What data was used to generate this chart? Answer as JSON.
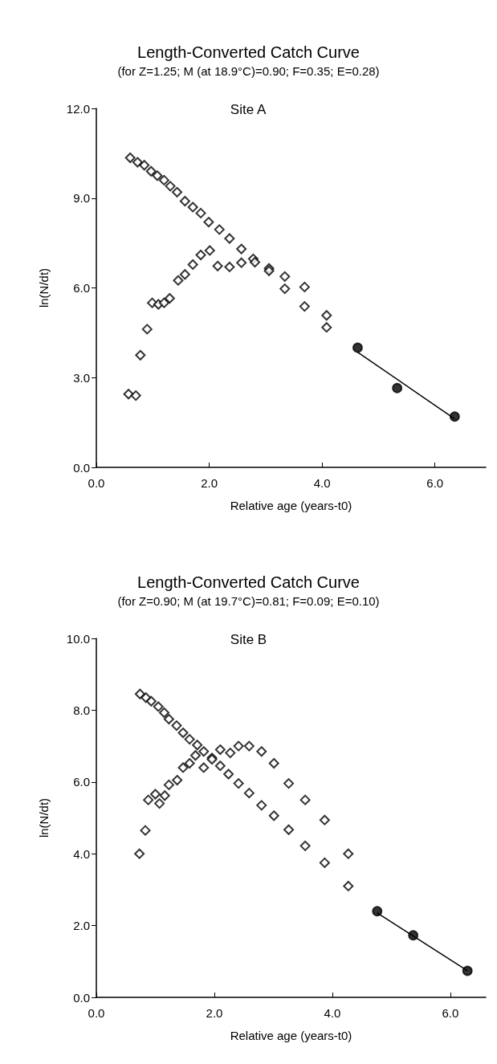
{
  "chart_data": [
    {
      "type": "scatter",
      "title": "Length-Converted Catch Curve",
      "subtitle": "(for Z=1.25; M (at 18.9°C)=0.90; F=0.35; E=0.28)",
      "annotations": [
        "Site A"
      ],
      "xlabel": "Relative age (years-t0)",
      "ylabel": "ln(N/dt)",
      "xlim": [
        0,
        6.9
      ],
      "xticks": [
        {
          "value": 0,
          "label": "0.0"
        },
        {
          "value": 2,
          "label": "2.0"
        },
        {
          "value": 4,
          "label": "4.0"
        },
        {
          "value": 6,
          "label": "6.0"
        }
      ],
      "ylim": [
        0,
        12
      ],
      "yticks": [
        {
          "value": 0,
          "label": "0.0"
        },
        {
          "value": 3,
          "label": "3.0"
        },
        {
          "value": 6,
          "label": "6.0"
        },
        {
          "value": 9,
          "label": "9.0"
        },
        {
          "value": 12,
          "label": "12.0"
        }
      ],
      "series": [
        {
          "color": "#000000",
          "marker": "diamond",
          "x": [
            0.6,
            0.73,
            0.85,
            0.97,
            1.08,
            1.2,
            1.31,
            1.43,
            1.57,
            1.71,
            1.85,
            1.99,
            2.18,
            2.36,
            2.57,
            2.78,
            3.06,
            3.34,
            3.69,
            4.08
          ],
          "values": [
            10.35,
            10.2,
            10.1,
            9.9,
            9.75,
            9.6,
            9.4,
            9.2,
            8.9,
            8.7,
            8.5,
            8.2,
            7.95,
            7.65,
            7.3,
            6.97,
            6.65,
            6.38,
            5.38,
            4.68
          ]
        },
        {
          "color": "#000000",
          "marker": "diamond",
          "x": [
            0.57,
            0.7,
            0.78,
            0.9,
            0.99,
            1.1,
            1.2,
            1.3,
            1.45,
            1.57,
            1.71,
            1.85,
            2.01,
            2.15,
            2.36,
            2.57,
            2.81,
            3.06,
            3.34,
            3.69,
            4.08
          ],
          "values": [
            2.45,
            2.4,
            3.75,
            4.62,
            5.5,
            5.45,
            5.5,
            5.65,
            6.25,
            6.45,
            6.78,
            7.1,
            7.25,
            6.73,
            6.7,
            6.84,
            6.86,
            6.57,
            5.97,
            6.03,
            5.08
          ]
        },
        {
          "color": "#000000",
          "marker": "circle",
          "x": [
            4.63,
            5.33,
            6.35
          ],
          "values": [
            4.0,
            2.65,
            1.7
          ]
        },
        {
          "type": "line",
          "color": "#000000",
          "marker": "none",
          "line_style": "solid",
          "x": [
            4.63,
            6.35
          ],
          "values": [
            3.85,
            1.62
          ]
        }
      ]
    },
    {
      "type": "scatter",
      "title": "Length-Converted Catch Curve",
      "subtitle": "(for Z=0.90; M (at 19.7°C)=0.81; F=0.09; E=0.10)",
      "annotations": [
        "Site B"
      ],
      "xlabel": "Relative age (years-t0)",
      "ylabel": "ln(N/dt)",
      "xlim": [
        0,
        6.6
      ],
      "xticks": [
        {
          "value": 0,
          "label": "0.0"
        },
        {
          "value": 2,
          "label": "2.0"
        },
        {
          "value": 4,
          "label": "4.0"
        },
        {
          "value": 6,
          "label": "6.0"
        }
      ],
      "ylim": [
        0,
        10
      ],
      "yticks": [
        {
          "value": 0,
          "label": "0.0"
        },
        {
          "value": 2,
          "label": "2.0"
        },
        {
          "value": 4,
          "label": "4.0"
        },
        {
          "value": 6,
          "label": "6.0"
        },
        {
          "value": 8,
          "label": "8.0"
        },
        {
          "value": 10,
          "label": "10.0"
        }
      ],
      "series": [
        {
          "color": "#000000",
          "marker": "diamond",
          "x": [
            0.74,
            0.84,
            0.93,
            1.05,
            1.15,
            1.23,
            1.36,
            1.47,
            1.58,
            1.71,
            1.82,
            1.96,
            2.1,
            2.24,
            2.41,
            2.59,
            2.8,
            3.01,
            3.26,
            3.54,
            3.87,
            4.27
          ],
          "values": [
            8.45,
            8.35,
            8.25,
            8.1,
            7.93,
            7.75,
            7.57,
            7.37,
            7.19,
            7.03,
            6.85,
            6.67,
            6.45,
            6.22,
            5.96,
            5.69,
            5.35,
            5.06,
            4.67,
            4.22,
            3.75,
            3.1
          ]
        },
        {
          "color": "#000000",
          "marker": "diamond",
          "x": [
            0.73,
            0.83,
            0.88,
            1.0,
            1.07,
            1.16,
            1.23,
            1.37,
            1.47,
            1.58,
            1.68,
            1.82,
            1.96,
            2.1,
            2.27,
            2.41,
            2.59,
            2.8,
            3.01,
            3.26,
            3.54,
            3.87,
            4.27
          ],
          "values": [
            4.0,
            4.65,
            5.5,
            5.66,
            5.4,
            5.62,
            5.92,
            6.05,
            6.4,
            6.52,
            6.74,
            6.4,
            6.63,
            6.9,
            6.81,
            7.0,
            7.0,
            6.85,
            6.52,
            5.96,
            5.5,
            4.94,
            4.0
          ]
        },
        {
          "color": "#000000",
          "marker": "circle",
          "x": [
            4.76,
            5.37,
            6.29
          ],
          "values": [
            2.4,
            1.73,
            0.74
          ]
        },
        {
          "type": "line",
          "color": "#000000",
          "marker": "none",
          "line_style": "solid",
          "x": [
            4.76,
            6.29
          ],
          "values": [
            2.35,
            0.74
          ]
        }
      ]
    }
  ]
}
